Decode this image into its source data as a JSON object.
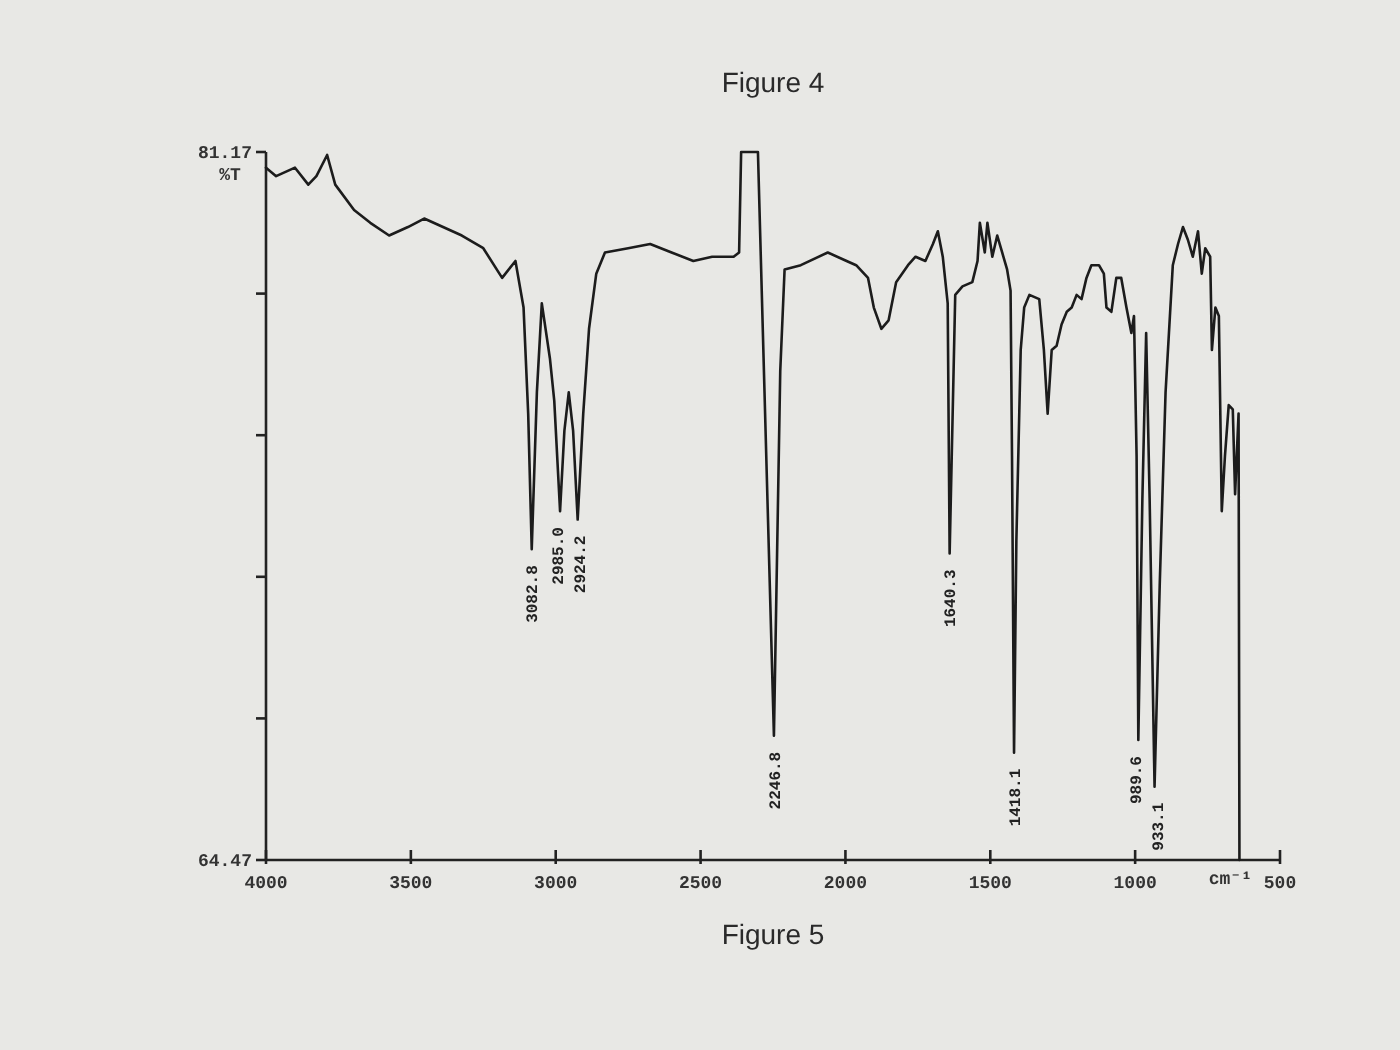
{
  "chart_data": {
    "type": "line",
    "title": "Figure 4",
    "xlabel": "cm⁻¹",
    "ylabel": "%T",
    "color": "#1c1c1c",
    "x": [
      4000,
      3965,
      3900,
      3854,
      3826,
      3789,
      3761,
      3696,
      3640,
      3575,
      3510,
      3454,
      3389,
      3324,
      3250,
      3185,
      3139,
      3111,
      3095,
      3082.8,
      3065,
      3048,
      3020,
      3005,
      2985,
      2970,
      2955,
      2940,
      2924.2,
      2905,
      2885,
      2860,
      2830,
      2750,
      2674,
      2600,
      2525,
      2460,
      2386,
      2367,
      2360,
      2302,
      2246.8,
      2225,
      2210,
      2154,
      2061,
      1996,
      1963,
      1922,
      1902,
      1876,
      1851,
      1825,
      1784,
      1758,
      1724,
      1698,
      1681,
      1664,
      1647,
      1640.3,
      1621,
      1596,
      1562,
      1544,
      1536,
      1519,
      1510,
      1493,
      1476,
      1459,
      1442,
      1430,
      1425,
      1418,
      1410,
      1395,
      1383,
      1365,
      1331,
      1315,
      1302,
      1288,
      1271,
      1254,
      1236,
      1219,
      1202,
      1185,
      1168,
      1151,
      1125,
      1108,
      1099,
      1082,
      1065,
      1048,
      1030,
      1013,
      1004,
      995,
      989,
      975,
      962,
      950,
      933,
      915,
      895,
      870,
      852,
      835,
      818,
      801,
      783,
      770,
      758,
      741,
      735,
      723,
      711,
      701,
      690,
      677,
      663,
      655,
      643,
      640
    ],
    "values": [
      80.8,
      80.6,
      80.8,
      80.4,
      80.6,
      81.1,
      80.4,
      79.8,
      79.5,
      79.2,
      79.4,
      79.6,
      79.4,
      79.2,
      78.9,
      78.2,
      78.6,
      77.5,
      75.0,
      71.8,
      75.5,
      77.6,
      76.3,
      75.3,
      72.7,
      74.6,
      75.5,
      74.6,
      72.5,
      75.0,
      77.0,
      78.3,
      78.8,
      78.9,
      79.0,
      78.8,
      78.6,
      78.7,
      78.7,
      78.8,
      81.17,
      81.17,
      67.4,
      76.0,
      78.4,
      78.5,
      78.8,
      78.6,
      78.5,
      78.2,
      77.5,
      77.0,
      77.2,
      78.1,
      78.5,
      78.7,
      78.6,
      79.0,
      79.3,
      78.7,
      77.6,
      71.7,
      77.8,
      78.0,
      78.1,
      78.6,
      79.5,
      78.8,
      79.5,
      78.7,
      79.2,
      78.8,
      78.4,
      77.9,
      74.0,
      67.0,
      72.0,
      76.5,
      77.5,
      77.8,
      77.7,
      76.5,
      75.0,
      76.5,
      76.6,
      77.1,
      77.4,
      77.5,
      77.8,
      77.7,
      78.2,
      78.5,
      78.5,
      78.3,
      77.5,
      77.4,
      78.2,
      78.2,
      77.5,
      76.9,
      77.3,
      74.0,
      67.3,
      73.0,
      76.9,
      73.0,
      66.2,
      71.0,
      75.5,
      78.5,
      79.0,
      79.4,
      79.1,
      78.7,
      79.3,
      78.3,
      78.9,
      78.7,
      76.5,
      77.5,
      77.3,
      72.7,
      74.0,
      75.2,
      75.1,
      73.1,
      75.0,
      64.47
    ],
    "xlim": [
      4000,
      500
    ],
    "ylim": [
      64.47,
      81.17
    ],
    "xticks": [
      4000,
      3500,
      3000,
      2500,
      2000,
      1500,
      1000,
      500
    ],
    "yticks": [
      64.47,
      {
        "value": 67.81,
        "label": null
      },
      {
        "value": 71.15,
        "label": null
      },
      {
        "value": 74.49,
        "label": null
      },
      {
        "value": 77.83,
        "label": null
      },
      81.17
    ],
    "annotations": [
      {
        "text": "3082.8",
        "x": 3082.8,
        "y": 71.8
      },
      {
        "text": "2985.0",
        "x": 2985,
        "y": 72.7
      },
      {
        "text": "2924.2",
        "x": 2924.2,
        "y": 72.5
      },
      {
        "text": "2246.8",
        "x": 2246.8,
        "y": 67.4
      },
      {
        "text": "1640.3",
        "x": 1640.3,
        "y": 71.7
      },
      {
        "text": "1418.1",
        "x": 1418,
        "y": 67.0
      },
      {
        "text": "989.6",
        "x": 989,
        "y": 67.3
      },
      {
        "text": "933.1",
        "x": 933,
        "y": 66.2
      },
      "Figure 5"
    ]
  }
}
